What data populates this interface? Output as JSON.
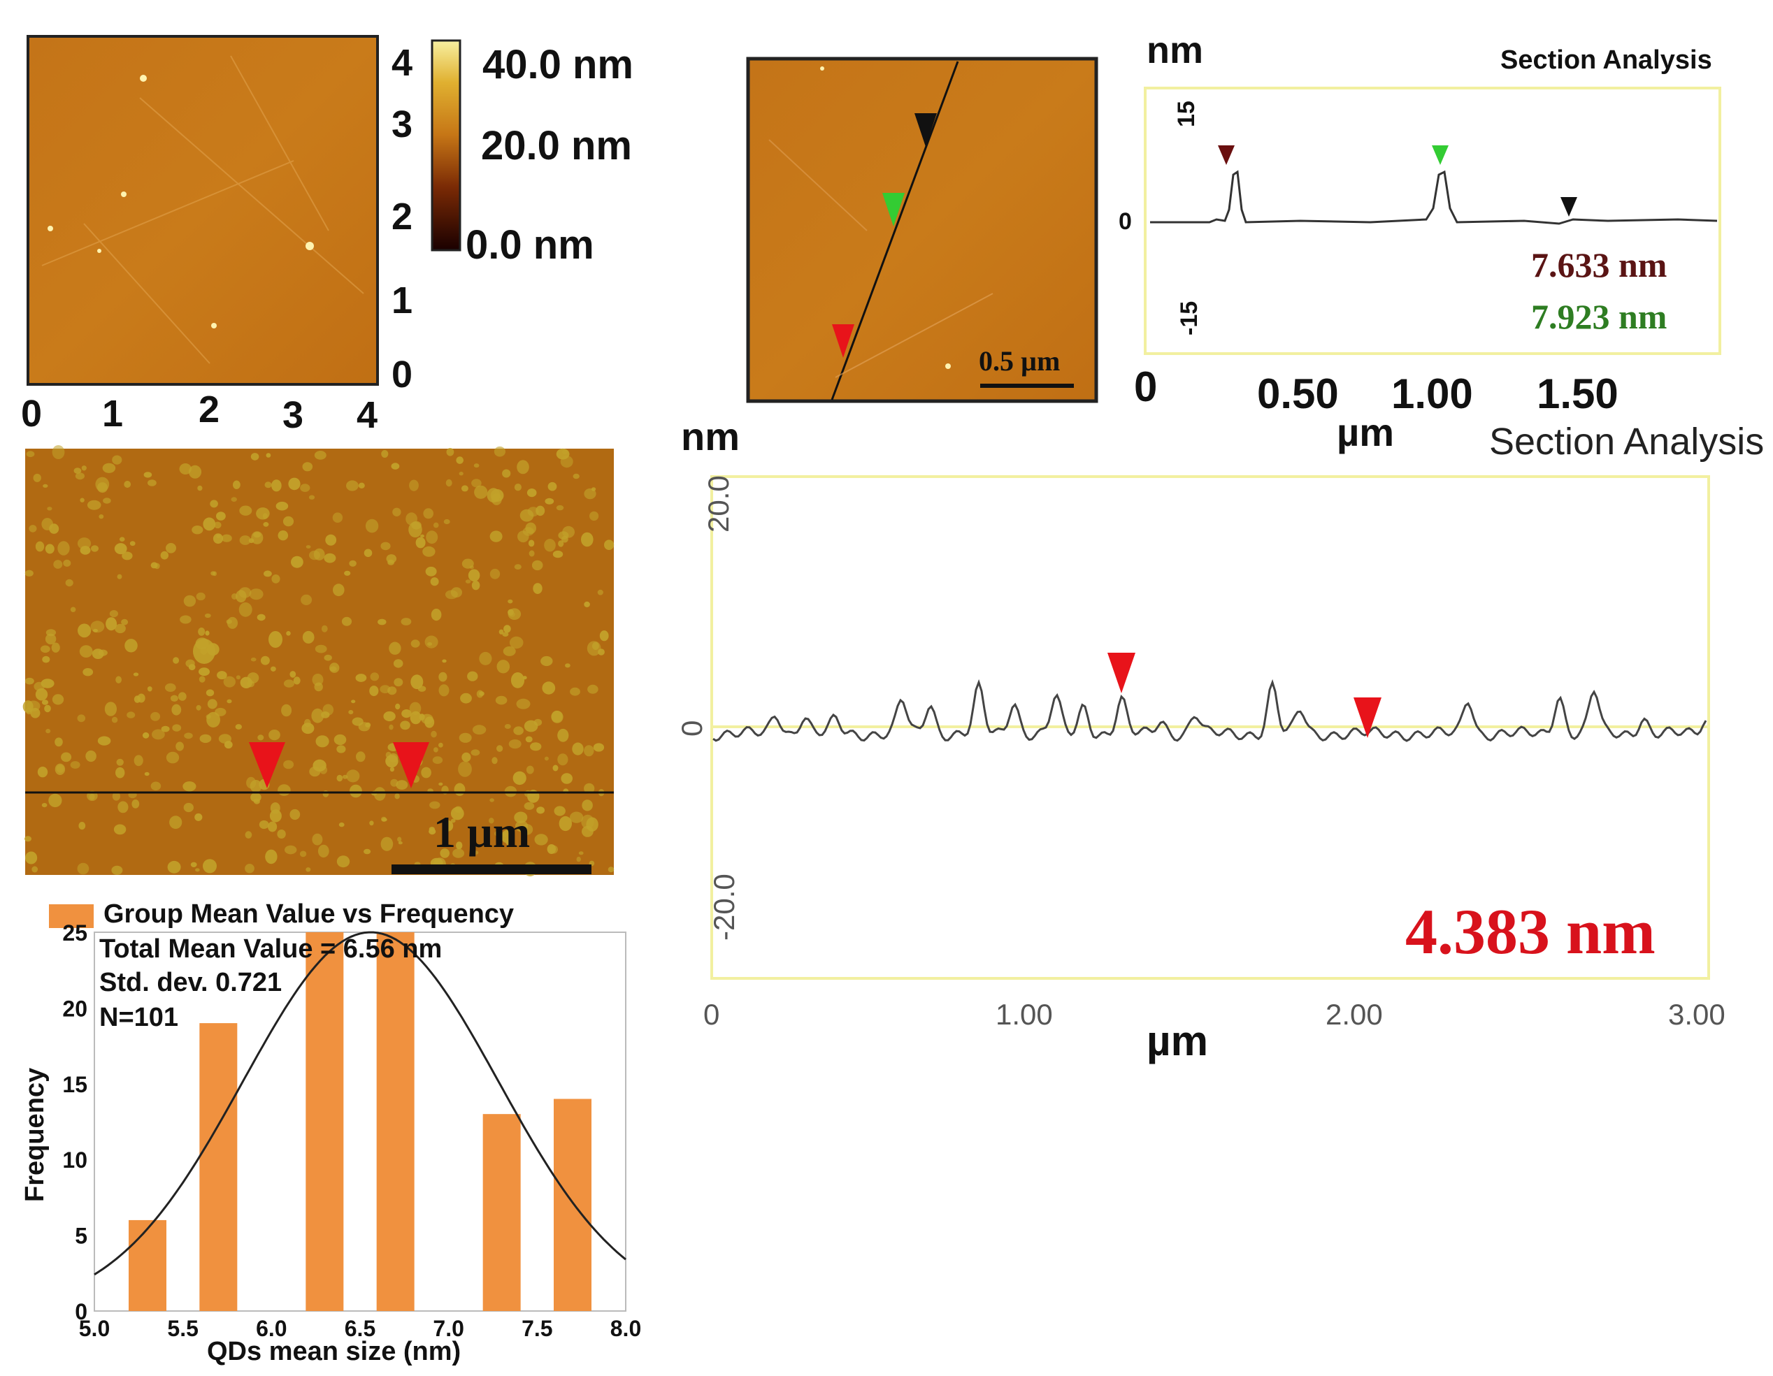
{
  "afm_image_1": {
    "colorbar": {
      "max_label": "40.0 nm",
      "mid_label": "20.0 nm",
      "min_label": "0.0 nm"
    },
    "x_ticks": [
      "0",
      "1",
      "2",
      "3",
      "4"
    ],
    "y_ticks": [
      "4",
      "3",
      "2",
      "1",
      "0"
    ]
  },
  "afm_image_2": {
    "scale_label": "0.5 µm"
  },
  "section_small": {
    "title": "Section Analysis",
    "y_unit": "nm",
    "x_unit": "µm",
    "y_ticks": [
      "15",
      "0",
      "-15"
    ],
    "x_ticks": [
      "0",
      "0.50",
      "1.00",
      "1.50"
    ],
    "value_1": "7.633 nm",
    "value_2": "7.923 nm"
  },
  "afm_image_3": {
    "scale_label": "1 µm"
  },
  "section_large": {
    "title": "Section Analysis",
    "y_unit": "nm",
    "x_unit": "µm",
    "y_ticks": [
      "20.0",
      "0",
      "-20.0"
    ],
    "x_ticks": [
      "0",
      "1.00",
      "2.00",
      "3.00"
    ],
    "value": "4.383 nm"
  },
  "colors": {
    "afm_orange": "#c67616",
    "bar_orange": "#f0913f",
    "marker_red": "#e8131a",
    "marker_green": "#33cc33",
    "value_red": "#d8121c",
    "value_green": "#2e7d22",
    "value_darkred": "#5a1414",
    "frame_yellow": "#f2f0a0"
  },
  "chart_data": {
    "type": "bar",
    "title": "Group Mean Value vs Frequency",
    "legend": "Group Mean Value vs Frequency",
    "stats": [
      "Total Mean Value = 6.56 nm",
      "Std. dev. 0.721",
      "N=101"
    ],
    "xlabel": "QDs mean size (nm)",
    "ylabel": "Frequency",
    "xlim": [
      5.0,
      8.0
    ],
    "ylim": [
      0,
      25
    ],
    "x_ticks": [
      "5.0",
      "5.5",
      "6.0",
      "6.5",
      "7.0",
      "7.5",
      "8.0"
    ],
    "y_ticks": [
      "0",
      "5",
      "10",
      "15",
      "20",
      "25"
    ],
    "bars": [
      {
        "x": 5.3,
        "value": 6
      },
      {
        "x": 5.7,
        "value": 19
      },
      {
        "x": 6.3,
        "value": 25
      },
      {
        "x": 6.7,
        "value": 25
      },
      {
        "x": 7.3,
        "value": 13
      },
      {
        "x": 7.7,
        "value": 14
      }
    ],
    "fit": {
      "type": "gaussian",
      "mean": 6.56,
      "std": 0.721,
      "peak": 25
    }
  }
}
